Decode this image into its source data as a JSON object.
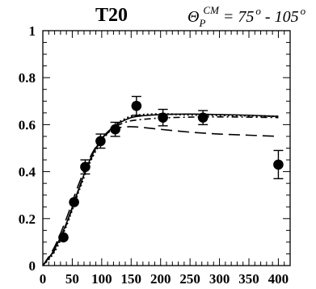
{
  "chart_data": {
    "type": "scatter",
    "title": "T20",
    "annotation": {
      "symbol": "Θ",
      "subscript": "P",
      "superscript": "CM",
      "equals": " = 75",
      "deg": "o",
      "dash": " - 105",
      "deg2": "o"
    },
    "xlim": [
      0,
      420
    ],
    "ylim": [
      0,
      1
    ],
    "x_ticks": [
      0,
      50,
      100,
      150,
      200,
      250,
      300,
      350,
      400
    ],
    "y_ticks": [
      0,
      0.2,
      0.4,
      0.6,
      0.8,
      1
    ],
    "x_tick_labels": [
      "0",
      "50",
      "100",
      "150",
      "200",
      "250",
      "300",
      "350",
      "400"
    ],
    "y_tick_labels": [
      "0",
      "0.2",
      "0.4",
      "0.6",
      "0.8",
      "1"
    ],
    "series": [
      {
        "style": "points-with-error-bars",
        "x": [
          35,
          53,
          72,
          98,
          123,
          159,
          204,
          272,
          400
        ],
        "y": [
          0.12,
          0.27,
          0.42,
          0.53,
          0.58,
          0.68,
          0.63,
          0.63,
          0.43
        ],
        "yerr": [
          0.0,
          0.0,
          0.03,
          0.03,
          0.03,
          0.04,
          0.035,
          0.03,
          0.06
        ]
      },
      {
        "style": "solid",
        "x": [
          0,
          20,
          40,
          60,
          80,
          100,
          120,
          140,
          160,
          200,
          250,
          300,
          350,
          400
        ],
        "y": [
          0.0,
          0.07,
          0.18,
          0.32,
          0.45,
          0.54,
          0.59,
          0.62,
          0.635,
          0.643,
          0.645,
          0.643,
          0.64,
          0.635
        ]
      },
      {
        "style": "dashed",
        "x": [
          0,
          20,
          40,
          60,
          80,
          100,
          120,
          140,
          160,
          200,
          250,
          300,
          350,
          400
        ],
        "y": [
          0.0,
          0.08,
          0.2,
          0.34,
          0.46,
          0.54,
          0.58,
          0.59,
          0.59,
          0.58,
          0.568,
          0.56,
          0.555,
          0.55
        ]
      },
      {
        "style": "dotted",
        "x": [
          0,
          20,
          40,
          60,
          80,
          100,
          120,
          140,
          160,
          200,
          250,
          300,
          350,
          400
        ],
        "y": [
          0.0,
          0.06,
          0.17,
          0.31,
          0.44,
          0.53,
          0.59,
          0.625,
          0.64,
          0.645,
          0.642,
          0.64,
          0.638,
          0.635
        ]
      },
      {
        "style": "dash-dot",
        "x": [
          0,
          20,
          40,
          60,
          80,
          100,
          120,
          140,
          160,
          200,
          250,
          300,
          350,
          400
        ],
        "y": [
          0.0,
          0.065,
          0.175,
          0.315,
          0.445,
          0.535,
          0.585,
          0.61,
          0.62,
          0.628,
          0.632,
          0.633,
          0.632,
          0.63
        ]
      }
    ]
  }
}
